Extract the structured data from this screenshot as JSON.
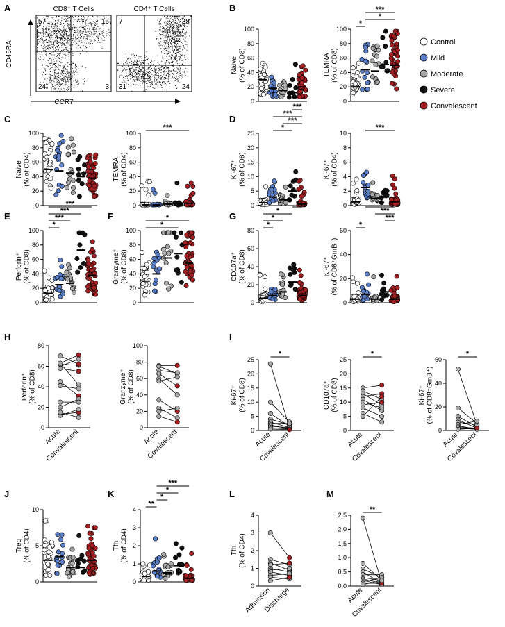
{
  "colors": {
    "Control": "#ffffff",
    "Mild": "#5b7fc9",
    "Moderate": "#a9a9a9",
    "Severe": "#111111",
    "Convalescent": "#a31f22"
  },
  "legend": [
    "Control",
    "Mild",
    "Moderate",
    "Severe",
    "Convalescent"
  ],
  "flow": {
    "label": "A",
    "ylabel": "CD45RA",
    "xlabel": "CCR7",
    "plots": [
      {
        "title": "CD8⁺ T Cells",
        "quads": {
          "tl": "57",
          "tr": "16",
          "bl": "24",
          "br": "3"
        }
      },
      {
        "title": "CD4⁺ T Cells",
        "quads": {
          "tl": "7",
          "tr": "38",
          "bl": "31",
          "br": "24"
        }
      }
    ]
  },
  "chart_data": [
    {
      "id": "B1",
      "label": "B",
      "type": "scatter",
      "ylabel": [
        "Naive",
        "(% of CD8)"
      ],
      "ylim": [
        0,
        100
      ],
      "yticks": [
        "0",
        "20",
        "40",
        "60",
        "80",
        "100"
      ],
      "groups": [
        "Control",
        "Mild",
        "Moderate",
        "Severe",
        "Convalescent"
      ],
      "medians": [
        30,
        18,
        15,
        12,
        20
      ],
      "sig": []
    },
    {
      "id": "B2",
      "type": "scatter",
      "ylabel": [
        "TEMRA",
        "(% of CD8)"
      ],
      "ylim": [
        0,
        100
      ],
      "yticks": [
        "0",
        "20",
        "40",
        "60",
        "80",
        "100"
      ],
      "groups": [
        "Control",
        "Mild",
        "Moderate",
        "Severe",
        "Convalescent"
      ],
      "medians": [
        20,
        44,
        42,
        51,
        50
      ],
      "sig": [
        {
          "a": 0,
          "b": 1,
          "text": "*"
        },
        {
          "a": 1,
          "b": 4,
          "text": "*"
        },
        {
          "a": 1,
          "b": 4,
          "text": "***"
        }
      ]
    },
    {
      "id": "C1",
      "label": "C",
      "type": "scatter",
      "ylabel": [
        "Naive",
        "(% of CD4)"
      ],
      "ylim": [
        0,
        100
      ],
      "yticks": [
        "0",
        "20",
        "40",
        "60",
        "80",
        "100"
      ],
      "groups": [
        "Control",
        "Mild",
        "Moderate",
        "Severe",
        "Convalescent"
      ],
      "medians": [
        50,
        48,
        45,
        40,
        38
      ],
      "sig": []
    },
    {
      "id": "C2",
      "type": "scatter",
      "ylabel": [
        "TEMRA",
        "(% of CD4)"
      ],
      "ylim": [
        0,
        100
      ],
      "yticks": [
        "0",
        "20",
        "40",
        "60",
        "80",
        "100"
      ],
      "groups": [
        "Control",
        "Mild",
        "Moderate",
        "Severe",
        "Convalescent"
      ],
      "medians": [
        1,
        1,
        2,
        2,
        3
      ],
      "sig": [
        {
          "a": 0,
          "b": 4,
          "text": "***"
        }
      ]
    },
    {
      "id": "D1",
      "label": "D",
      "type": "scatter",
      "ylabel": [
        "Ki-67⁺",
        "(% of CD8)"
      ],
      "ylim": [
        0,
        25
      ],
      "yticks": [
        "0",
        "5",
        "10",
        "15",
        "20",
        "25"
      ],
      "groups": [
        "Control",
        "Mild",
        "Moderate",
        "Severe",
        "Convalescent"
      ],
      "medians": [
        1,
        3,
        2,
        5,
        0.5
      ],
      "sig": [
        {
          "a": 1,
          "b": 3,
          "text": "*"
        },
        {
          "a": 2,
          "b": 4,
          "text": "***"
        },
        {
          "a": 1,
          "b": 4,
          "text": "***"
        },
        {
          "a": 3,
          "b": 4,
          "text": "***"
        }
      ]
    },
    {
      "id": "D2",
      "type": "scatter",
      "ylabel": [
        "Ki-67⁺",
        "(% of CD4)"
      ],
      "ylim": [
        0,
        10
      ],
      "yticks": [
        "0",
        "2",
        "4",
        "6",
        "8",
        "10"
      ],
      "groups": [
        "Control",
        "Mild",
        "Moderate",
        "Severe",
        "Convalescent"
      ],
      "medians": [
        0.5,
        2.5,
        1,
        1.2,
        0.5
      ],
      "sig": [
        {
          "a": 1,
          "b": 4,
          "text": "***"
        }
      ]
    },
    {
      "id": "E1",
      "label": "E",
      "type": "scatter",
      "ylabel": [
        "Perforin⁺",
        "(% of CD8)"
      ],
      "ylim": [
        0,
        100
      ],
      "yticks": [
        "0",
        "20",
        "40",
        "60",
        "80",
        "100"
      ],
      "groups": [
        "Control",
        "Mild",
        "Moderate",
        "Severe",
        "Convalescent"
      ],
      "medians": [
        13,
        25,
        27,
        73,
        38
      ],
      "sig": [
        {
          "a": 0,
          "b": 1,
          "text": "*"
        },
        {
          "a": 0,
          "b": 2,
          "text": "***"
        },
        {
          "a": 0,
          "b": 3,
          "text": "***"
        },
        {
          "a": 0,
          "b": 4,
          "text": "***"
        }
      ]
    },
    {
      "id": "F1",
      "label": "F",
      "type": "scatter",
      "ylabel": [
        "Granzyme⁺",
        "(% of CD8)"
      ],
      "ylim": [
        0,
        100
      ],
      "yticks": [
        "0",
        "20",
        "40",
        "60",
        "80",
        "100"
      ],
      "groups": [
        "Control",
        "Mild",
        "Moderate",
        "Severe",
        "Convalescent"
      ],
      "medians": [
        30,
        40,
        62,
        68,
        55
      ],
      "sig": [
        {
          "a": 0,
          "b": 3,
          "text": "*"
        },
        {
          "a": 0,
          "b": 4,
          "text": "*"
        }
      ]
    },
    {
      "id": "G1",
      "label": "G",
      "type": "scatter",
      "ylabel": [
        "CD107a⁺",
        "(% of CD8)"
      ],
      "ylim": [
        0,
        80
      ],
      "yticks": [
        "0",
        "20",
        "40",
        "60",
        "80"
      ],
      "groups": [
        "Control",
        "Mild",
        "Moderate",
        "Severe",
        "Convalescent"
      ],
      "medians": [
        5,
        8,
        12,
        23,
        8
      ],
      "sig": [
        {
          "a": 0,
          "b": 1,
          "text": "*"
        },
        {
          "a": 0,
          "b": 2,
          "text": "*"
        },
        {
          "a": 0,
          "b": 3,
          "text": "*"
        },
        {
          "a": 3,
          "b": 4,
          "text": "*"
        },
        {
          "a": 3,
          "b": 4,
          "text": "*"
        }
      ]
    },
    {
      "id": "G2",
      "type": "scatter",
      "ylabel": [
        "Ki-67⁺",
        "(% of CD8⁺GmB⁺)"
      ],
      "ylim": [
        0,
        60
      ],
      "yticks": [
        "0",
        "20",
        "40",
        "60"
      ],
      "groups": [
        "Control",
        "Mild",
        "Moderate",
        "Severe",
        "Convalescent"
      ],
      "medians": [
        3,
        7,
        3,
        9,
        3
      ],
      "sig": [
        {
          "a": 0,
          "b": 1,
          "text": "*"
        },
        {
          "a": 3,
          "b": 4,
          "text": "***"
        },
        {
          "a": 2,
          "b": 4,
          "text": "***"
        },
        {
          "a": 1,
          "b": 4,
          "text": "***"
        },
        {
          "a": 1,
          "b": 4,
          "text": "*"
        }
      ]
    },
    {
      "id": "H1",
      "label": "H",
      "type": "line",
      "ylabel": [
        "Perforin⁺",
        "(% of CD8)"
      ],
      "ylim": [
        0,
        80
      ],
      "yticks": [
        "0",
        "20",
        "40",
        "60",
        "80"
      ],
      "categories": [
        "Acute",
        "Convalescent"
      ],
      "pairs": [
        [
          63,
          71
        ],
        [
          60,
          67
        ],
        [
          62,
          61
        ],
        [
          58,
          55
        ],
        [
          63,
          42
        ],
        [
          41,
          38
        ],
        [
          45,
          31
        ],
        [
          20,
          28
        ],
        [
          25,
          25
        ],
        [
          13,
          15
        ],
        [
          12,
          18
        ],
        [
          15,
          10
        ],
        [
          70,
          62
        ]
      ],
      "sig": []
    },
    {
      "id": "H2",
      "type": "line",
      "ylabel": [
        "Granzyme⁺",
        "(% of CD8)"
      ],
      "ylim": [
        0,
        100
      ],
      "yticks": [
        "0",
        "20",
        "40",
        "60",
        "80",
        "100"
      ],
      "categories": [
        "Acute",
        "Covalescent"
      ],
      "pairs": [
        [
          76,
          76
        ],
        [
          75,
          66
        ],
        [
          70,
          67
        ],
        [
          66,
          51
        ],
        [
          60,
          40
        ],
        [
          57,
          62
        ],
        [
          34,
          20
        ],
        [
          24,
          12
        ],
        [
          20,
          24
        ],
        [
          14,
          7
        ]
      ],
      "sig": []
    },
    {
      "id": "I1",
      "label": "I",
      "type": "line",
      "ylabel": [
        "Ki-67⁺",
        "(% of CD8)"
      ],
      "ylim": [
        0,
        25
      ],
      "yticks": [
        "0",
        "5",
        "10",
        "15",
        "20",
        "25"
      ],
      "categories": [
        "Acute",
        "Covalescent"
      ],
      "pairs": [
        [
          23.5,
          1
        ],
        [
          10,
          3
        ],
        [
          6,
          1.5
        ],
        [
          4,
          2
        ],
        [
          3,
          1
        ],
        [
          2.5,
          2.5
        ],
        [
          2,
          0.5
        ],
        [
          1.5,
          1
        ],
        [
          1,
          0.5
        ],
        [
          0.5,
          0.3
        ]
      ],
      "sig": [
        {
          "a": 0,
          "b": 1,
          "text": "*"
        }
      ]
    },
    {
      "id": "I2",
      "type": "line",
      "ylabel": [
        "CD107a⁺",
        "(% of CD8)"
      ],
      "ylim": [
        0,
        25
      ],
      "yticks": [
        "0",
        "5",
        "10",
        "15",
        "20",
        "25"
      ],
      "categories": [
        "Acute",
        "Covalescent"
      ],
      "pairs": [
        [
          15,
          16
        ],
        [
          14,
          11
        ],
        [
          13,
          9
        ],
        [
          12,
          13
        ],
        [
          11,
          7
        ],
        [
          10,
          8
        ],
        [
          9,
          10
        ],
        [
          8,
          5
        ],
        [
          6,
          3
        ],
        [
          5,
          12
        ]
      ],
      "sig": [
        {
          "a": 0,
          "b": 1,
          "text": "*"
        }
      ]
    },
    {
      "id": "I3",
      "type": "line",
      "ylabel": [
        "Ki-67⁺",
        "(% of CD8⁺GmB⁺)"
      ],
      "ylim": [
        0,
        60
      ],
      "yticks": [
        "0",
        "20",
        "40",
        "60"
      ],
      "categories": [
        "Acute",
        "Covalescent"
      ],
      "pairs": [
        [
          52,
          5
        ],
        [
          19,
          6
        ],
        [
          12,
          3
        ],
        [
          9,
          2
        ],
        [
          7,
          5
        ],
        [
          5,
          8
        ],
        [
          4,
          1
        ],
        [
          3,
          2
        ],
        [
          2,
          1
        ],
        [
          1,
          2
        ]
      ],
      "sig": [
        {
          "a": 0,
          "b": 1,
          "text": "*"
        }
      ]
    },
    {
      "id": "J1",
      "label": "J",
      "type": "scatter",
      "ylabel": [
        "Treg",
        "(% of CD4)"
      ],
      "ylim": [
        0,
        10
      ],
      "yticks": [
        "0",
        "5",
        "10"
      ],
      "groups": [
        "Control",
        "Mild",
        "Moderate",
        "Severe",
        "Convalescent"
      ],
      "medians": [
        3,
        3.5,
        2,
        2,
        3
      ],
      "sig": []
    },
    {
      "id": "K1",
      "label": "K",
      "type": "scatter",
      "ylabel": [
        "Tfh",
        "(% of CD4)"
      ],
      "ylim": [
        0,
        4
      ],
      "yticks": [
        "0",
        "1",
        "2",
        "3",
        "4"
      ],
      "groups": [
        "Control",
        "Mild",
        "Moderate",
        "Severe",
        "Convalescent"
      ],
      "medians": [
        0.3,
        0.6,
        0.5,
        0.9,
        0.2
      ],
      "sig": [
        {
          "a": 0,
          "b": 1,
          "text": "**"
        },
        {
          "a": 1,
          "b": 2,
          "text": "*"
        },
        {
          "a": 1,
          "b": 3,
          "text": "*"
        },
        {
          "a": 1,
          "b": 4,
          "text": "***"
        },
        {
          "a": 2,
          "b": 4,
          "text": "***"
        },
        {
          "a": 3,
          "b": 4,
          "text": "***"
        }
      ]
    },
    {
      "id": "L1",
      "label": "L",
      "type": "line",
      "ylabel": [
        "Tfh",
        "(% of CD4)"
      ],
      "ylim": [
        0,
        4
      ],
      "yticks": [
        "0",
        "1",
        "2",
        "3",
        "4"
      ],
      "categories": [
        "Admission",
        "Discharge"
      ],
      "pairs": [
        [
          3,
          1.6
        ],
        [
          1.5,
          1.2
        ],
        [
          1.3,
          0.9
        ],
        [
          1.2,
          1.3
        ],
        [
          1,
          0.8
        ],
        [
          0.9,
          1
        ],
        [
          0.8,
          0.6
        ],
        [
          0.6,
          0.7
        ],
        [
          0.5,
          0.4
        ],
        [
          0.3,
          0.5
        ]
      ],
      "sig": []
    },
    {
      "id": "M1",
      "label": "M",
      "type": "line",
      "ylabel": [
        "",
        ""
      ],
      "ylim": [
        0,
        2.5
      ],
      "yticks": [
        "0.0",
        "0.5",
        "1.0",
        "1.5",
        "2.0",
        "2.5"
      ],
      "categories": [
        "Acute",
        "Covalescent"
      ],
      "pairs": [
        [
          2.4,
          0.1
        ],
        [
          0.8,
          0.2
        ],
        [
          0.6,
          0.3
        ],
        [
          0.5,
          0.1
        ],
        [
          0.4,
          0.4
        ],
        [
          0.3,
          0.2
        ],
        [
          0.25,
          0.1
        ],
        [
          0.2,
          0.05
        ],
        [
          0.15,
          0.3
        ],
        [
          0.1,
          0.1
        ],
        [
          0.05,
          0.2
        ]
      ],
      "sig": [
        {
          "a": 0,
          "b": 1,
          "text": "**"
        }
      ]
    }
  ]
}
